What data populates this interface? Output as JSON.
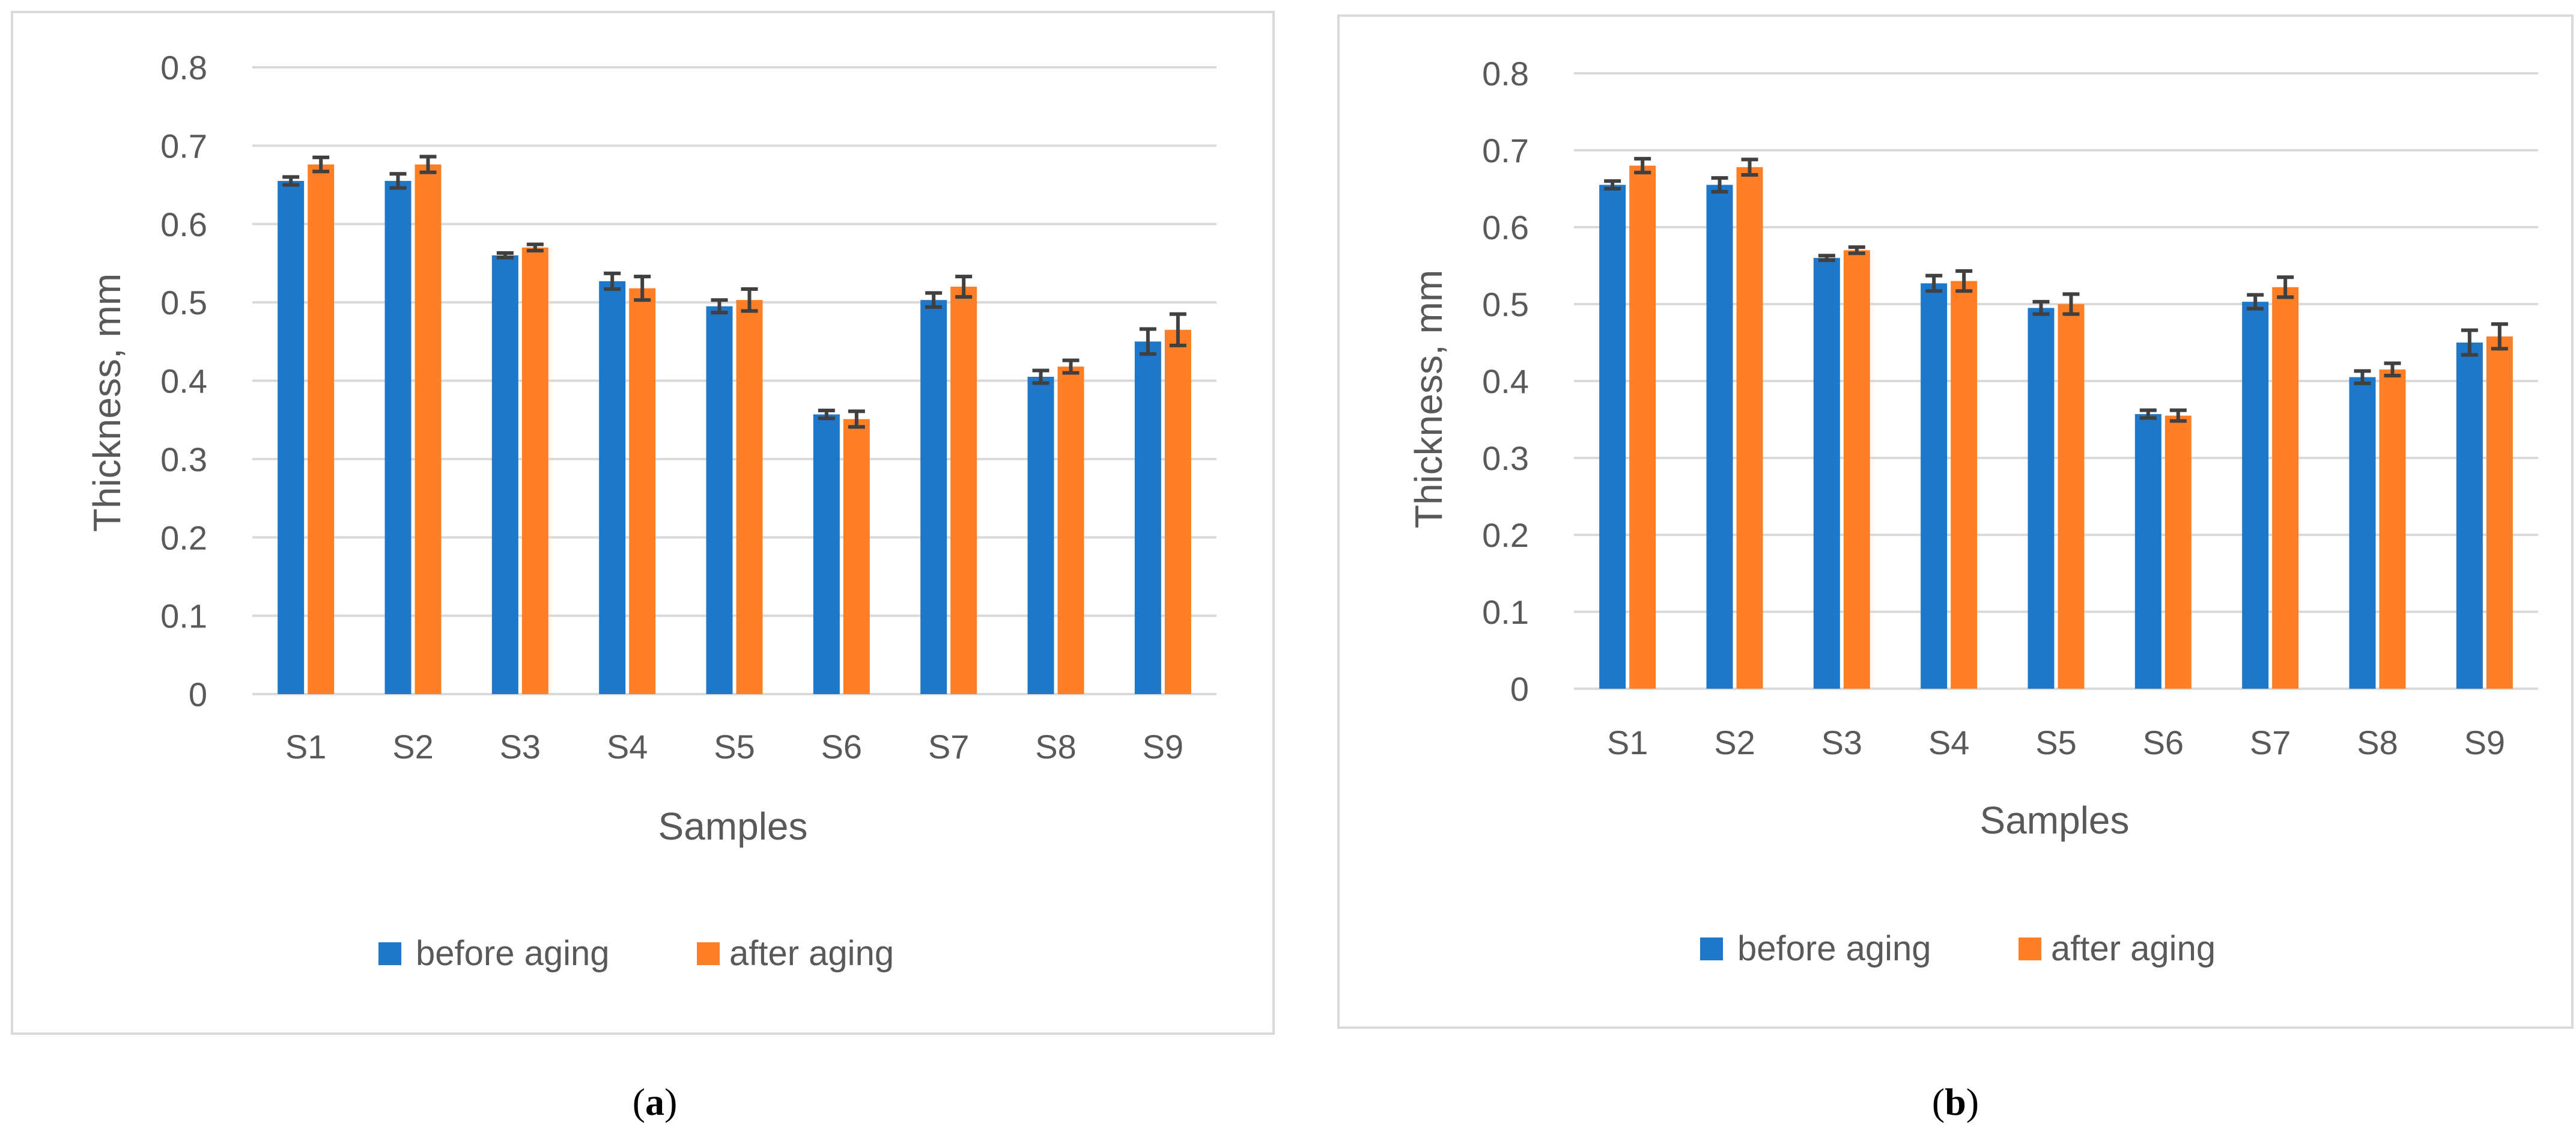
{
  "colors": {
    "before": "#1f77c9",
    "after": "#ff7f27",
    "grid": "#d9d9d9",
    "text": "#595959",
    "error": "#404040"
  },
  "chart_data": [
    {
      "type": "bar",
      "caption": "a",
      "xlabel": "Samples",
      "ylabel": "Thickness, mm",
      "ylim": [
        0,
        0.8
      ],
      "yticks": [
        0,
        0.1,
        0.2,
        0.3,
        0.4,
        0.5,
        0.6,
        0.7,
        0.8
      ],
      "ytick_labels": [
        "0",
        "0.1",
        "0.2",
        "0.3",
        "0.4",
        "0.5",
        "0.6",
        "0.7",
        "0.8"
      ],
      "grid": true,
      "legend_position": "bottom",
      "categories": [
        "S1",
        "S2",
        "S3",
        "S4",
        "S5",
        "S6",
        "S7",
        "S8",
        "S9"
      ],
      "series": [
        {
          "name": "before aging",
          "values": [
            0.655,
            0.655,
            0.56,
            0.527,
            0.495,
            0.357,
            0.503,
            0.405,
            0.45
          ],
          "errors": [
            0.005,
            0.009,
            0.003,
            0.01,
            0.008,
            0.005,
            0.009,
            0.008,
            0.016
          ]
        },
        {
          "name": "after aging",
          "values": [
            0.676,
            0.676,
            0.57,
            0.518,
            0.503,
            0.351,
            0.52,
            0.418,
            0.465
          ],
          "errors": [
            0.009,
            0.01,
            0.004,
            0.015,
            0.014,
            0.01,
            0.013,
            0.008,
            0.02
          ]
        }
      ]
    },
    {
      "type": "bar",
      "caption": "b",
      "xlabel": "Samples",
      "ylabel": "Thickness, mm",
      "ylim": [
        0,
        0.8
      ],
      "yticks": [
        0,
        0.1,
        0.2,
        0.3,
        0.4,
        0.5,
        0.6,
        0.7,
        0.8
      ],
      "ytick_labels": [
        "0",
        "0.1",
        "0.2",
        "0.3",
        "0.4",
        "0.5",
        "0.6",
        "0.7",
        "0.8"
      ],
      "grid": true,
      "legend_position": "bottom",
      "categories": [
        "S1",
        "S2",
        "S3",
        "S4",
        "S5",
        "S6",
        "S7",
        "S8",
        "S9"
      ],
      "series": [
        {
          "name": "before aging",
          "values": [
            0.655,
            0.655,
            0.56,
            0.527,
            0.495,
            0.357,
            0.503,
            0.405,
            0.45
          ],
          "errors": [
            0.005,
            0.009,
            0.003,
            0.01,
            0.008,
            0.005,
            0.009,
            0.008,
            0.016
          ]
        },
        {
          "name": "after aging",
          "values": [
            0.68,
            0.678,
            0.57,
            0.53,
            0.5,
            0.355,
            0.522,
            0.415,
            0.458
          ],
          "errors": [
            0.009,
            0.01,
            0.004,
            0.013,
            0.013,
            0.007,
            0.013,
            0.008,
            0.016
          ]
        }
      ]
    }
  ]
}
